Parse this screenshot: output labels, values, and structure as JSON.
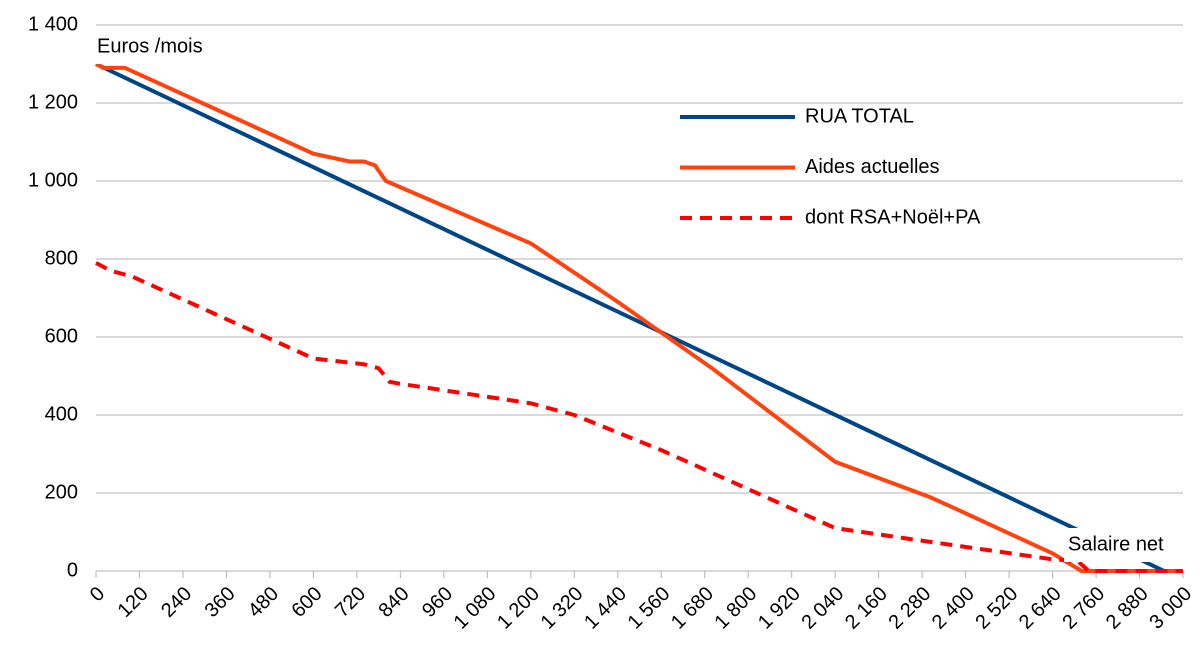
{
  "chart_data": {
    "type": "line",
    "x_annotation": "Salaire net",
    "y_annotation": "Euros /mois",
    "xlim": [
      0,
      3000
    ],
    "ylim": [
      0,
      1400
    ],
    "xticks": [
      0,
      120,
      240,
      360,
      480,
      600,
      720,
      840,
      960,
      {
        "value": 1080,
        "label": "1 080"
      },
      {
        "value": 1200,
        "label": "1 200"
      },
      {
        "value": 1320,
        "label": "1 320"
      },
      {
        "value": 1440,
        "label": "1 440"
      },
      {
        "value": 1560,
        "label": "1 560"
      },
      {
        "value": 1680,
        "label": "1 680"
      },
      {
        "value": 1800,
        "label": "1 800"
      },
      {
        "value": 1920,
        "label": "1 920"
      },
      {
        "value": 2040,
        "label": "2 040"
      },
      {
        "value": 2160,
        "label": "2 160"
      },
      {
        "value": 2280,
        "label": "2 280"
      },
      {
        "value": 2400,
        "label": "2 400"
      },
      {
        "value": 2520,
        "label": "2 520"
      },
      {
        "value": 2640,
        "label": "2 640"
      },
      {
        "value": 2760,
        "label": "2 760"
      },
      {
        "value": 2880,
        "label": "2 880"
      },
      {
        "value": 3000,
        "label": "3 000"
      }
    ],
    "yticks": [
      0,
      200,
      400,
      600,
      800,
      {
        "value": 1000,
        "label": "1 000"
      },
      {
        "value": 1200,
        "label": "1 200"
      },
      {
        "value": 1400,
        "label": "1 400"
      }
    ],
    "grid": true,
    "legend": "right",
    "series": [
      {
        "name": "RUA TOTAL",
        "color": "#004586",
        "dashed": false,
        "x": [
          0,
          2948,
          3000
        ],
        "values": [
          1300,
          0,
          0
        ]
      },
      {
        "name": "Aides actuelles",
        "color": "#ff420e",
        "dashed": false,
        "x": [
          0,
          20,
          80,
          600,
          700,
          740,
          770,
          800,
          1200,
          1440,
          1700,
          2040,
          2300,
          2360,
          2640,
          2720,
          3000
        ],
        "values": [
          1300,
          1290,
          1290,
          1070,
          1050,
          1050,
          1040,
          1000,
          840,
          690,
          520,
          280,
          190,
          165,
          45,
          0,
          0
        ]
      },
      {
        "name": "dont RSA+Noël+PA",
        "color": "#ff0000",
        "dashed": true,
        "x": [
          0,
          40,
          100,
          600,
          740,
          780,
          810,
          840,
          1200,
          1320,
          1560,
          1800,
          2040,
          2300,
          2640,
          2710,
          2740,
          3000
        ],
        "values": [
          790,
          770,
          755,
          545,
          530,
          520,
          485,
          480,
          430,
          400,
          310,
          210,
          110,
          75,
          30,
          25,
          0,
          0
        ]
      }
    ]
  }
}
